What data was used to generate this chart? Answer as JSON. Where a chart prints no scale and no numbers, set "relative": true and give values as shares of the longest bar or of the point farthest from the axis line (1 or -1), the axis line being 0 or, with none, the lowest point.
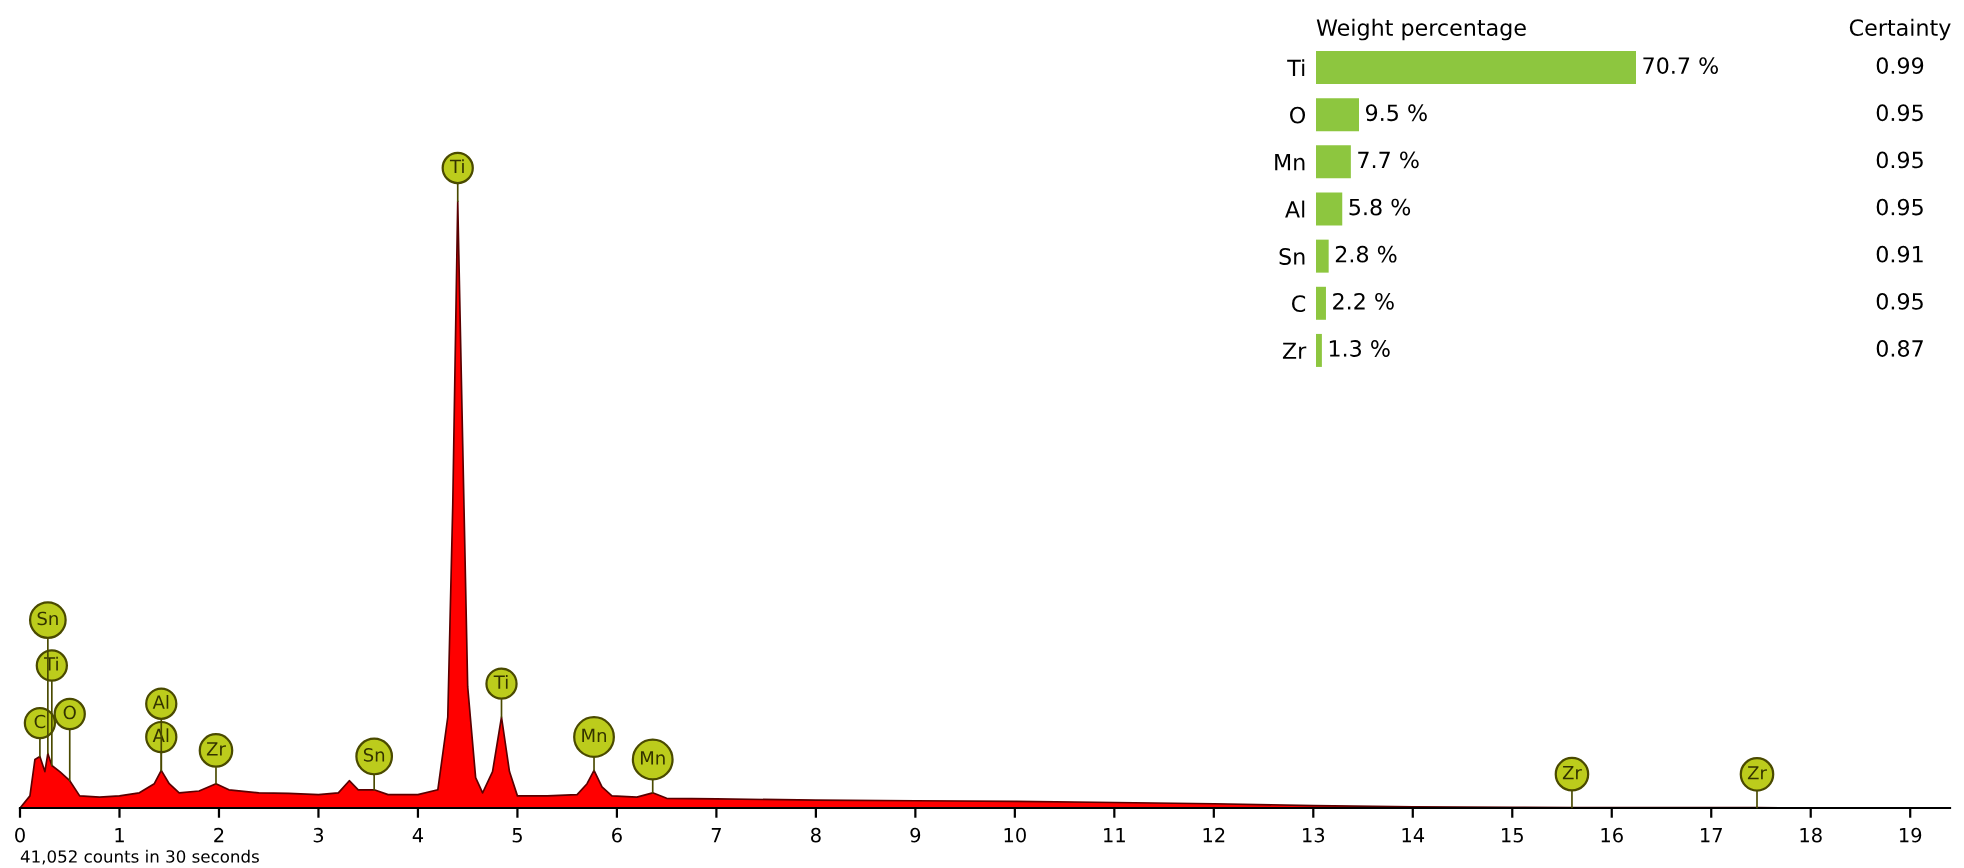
{
  "chart_data": [
    {
      "type": "area",
      "relative": true,
      "xlim": [
        0,
        19.4
      ],
      "xticks": [
        0,
        1,
        2,
        3,
        4,
        5,
        6,
        7,
        8,
        9,
        10,
        11,
        12,
        13,
        14,
        15,
        16,
        17,
        18,
        19
      ],
      "grid": false,
      "x": [
        0,
        0.1,
        0.15,
        0.2,
        0.25,
        0.28,
        0.32,
        0.4,
        0.5,
        0.6,
        0.8,
        1.0,
        1.2,
        1.35,
        1.42,
        1.5,
        1.6,
        1.8,
        1.97,
        2.1,
        2.4,
        2.7,
        3.0,
        3.2,
        3.31,
        3.4,
        3.56,
        3.7,
        4.0,
        4.2,
        4.3,
        4.35,
        4.4,
        4.45,
        4.5,
        4.58,
        4.65,
        4.75,
        4.84,
        4.92,
        5.0,
        5.3,
        5.6,
        5.7,
        5.77,
        5.85,
        5.95,
        6.2,
        6.36,
        6.5,
        7,
        8,
        9,
        10,
        11,
        12,
        13,
        14,
        15,
        15.6,
        17.46,
        19.4
      ],
      "series": [
        {
          "color": "#ff0000",
          "values": [
            0,
            0.02,
            0.08,
            0.085,
            0.06,
            0.09,
            0.07,
            0.06,
            0.045,
            0.02,
            0.018,
            0.02,
            0.025,
            0.04,
            0.062,
            0.04,
            0.025,
            0.028,
            0.04,
            0.03,
            0.025,
            0.024,
            0.022,
            0.025,
            0.045,
            0.03,
            0.03,
            0.022,
            0.022,
            0.03,
            0.15,
            0.5,
            1.0,
            0.6,
            0.2,
            0.05,
            0.025,
            0.06,
            0.15,
            0.06,
            0.02,
            0.02,
            0.022,
            0.04,
            0.062,
            0.035,
            0.02,
            0.018,
            0.025,
            0.016,
            0.015,
            0.013,
            0.012,
            0.011,
            0.009,
            0.007,
            0.004,
            0.002,
            0.001,
            0.0008,
            0.0005,
            0.0003
          ]
        }
      ],
      "annotations": [
        {
          "text": "C",
          "x": 0.2,
          "y": 0.085
        },
        {
          "text": "O",
          "x": 0.5,
          "y": 0.045
        },
        {
          "text": "Ti",
          "x": 0.32,
          "y": 0.07
        },
        {
          "text": "Sn",
          "x": 0.28,
          "y": 0.09
        },
        {
          "text": "Al",
          "x": 1.42,
          "y": 0.062
        },
        {
          "text": "Al",
          "x": 1.42,
          "y": 0.062
        },
        {
          "text": "Zr",
          "x": 1.97,
          "y": 0.04
        },
        {
          "text": "Sn",
          "x": 3.56,
          "y": 0.03
        },
        {
          "text": "Ti",
          "x": 4.4,
          "y": 1.0
        },
        {
          "text": "Ti",
          "x": 4.84,
          "y": 0.15
        },
        {
          "text": "Mn",
          "x": 5.77,
          "y": 0.062
        },
        {
          "text": "Mn",
          "x": 6.36,
          "y": 0.025
        },
        {
          "text": "Zr",
          "x": 15.6,
          "y": 0.0008
        },
        {
          "text": "Zr",
          "x": 17.46,
          "y": 0.0005
        },
        "41,052 counts in 30 seconds"
      ]
    },
    {
      "type": "bar",
      "orientation": "horizontal",
      "title": "Weight percentage",
      "categories": [
        "Ti",
        "O",
        "Mn",
        "Al",
        "Sn",
        "C",
        "Zr"
      ],
      "values": [
        70.7,
        9.5,
        7.7,
        5.8,
        2.8,
        2.2,
        1.3
      ],
      "color": "#8dc63f",
      "value_labels": [
        "70.7 %",
        "9.5 %",
        "7.7 %",
        "5.8 %",
        "2.8 %",
        "2.2 %",
        "1.3 %"
      ]
    },
    {
      "type": "other",
      "title": "Certainty",
      "values": [
        0.99,
        0.95,
        0.95,
        0.95,
        0.91,
        0.95,
        0.87
      ],
      "data_labels": true
    }
  ]
}
